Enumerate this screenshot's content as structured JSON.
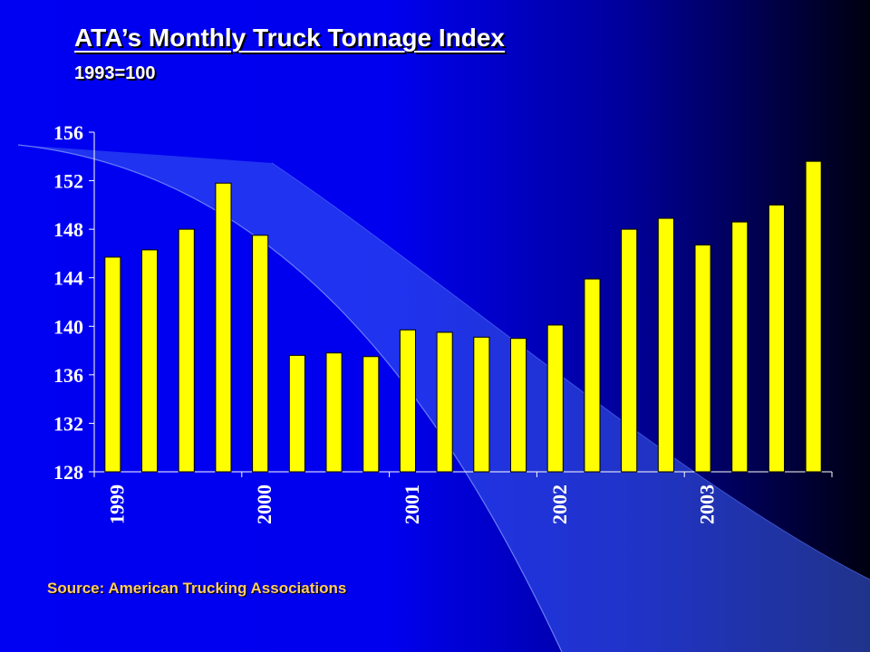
{
  "slide": {
    "title": "ATA’s Monthly Truck Tonnage Index",
    "subtitle": "1993=100",
    "source": "Source: American Trucking Associations"
  },
  "colors": {
    "bar": "#ffff00",
    "bar_outline": "#000000",
    "axis": "#ffffff",
    "text": "#ffffff",
    "source": "#ffcc66"
  },
  "chart_data": {
    "type": "bar",
    "title": "",
    "xlabel": "",
    "ylabel": "",
    "ylim": [
      128,
      156
    ],
    "yticks": [
      128,
      132,
      136,
      140,
      144,
      148,
      152,
      156
    ],
    "grid": false,
    "legend": "none",
    "x_tick_labels": [
      "1999",
      "2000",
      "2001",
      "2002",
      "2003"
    ],
    "x_tick_positions": [
      0,
      4,
      8,
      12,
      16
    ],
    "values": [
      145.7,
      146.3,
      148.0,
      151.8,
      147.5,
      137.6,
      137.8,
      137.5,
      139.7,
      139.5,
      139.1,
      139.0,
      140.1,
      143.9,
      148.0,
      148.9,
      146.7,
      148.6,
      150.0,
      153.6
    ]
  }
}
